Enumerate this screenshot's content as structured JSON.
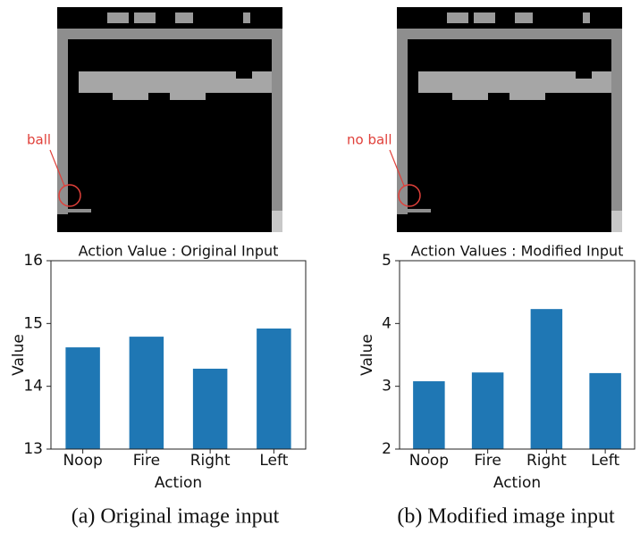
{
  "chart_data": [
    {
      "type": "bar",
      "title": "Action Value : Original Input",
      "x_label": "Action",
      "y_label": "Value",
      "categories": [
        "Noop",
        "Fire",
        "Right",
        "Left"
      ],
      "values": [
        14.62,
        14.79,
        14.28,
        14.92
      ],
      "color": "#1f77b4",
      "ylim": [
        13,
        16
      ],
      "yticks": [
        13,
        14,
        15,
        16
      ]
    },
    {
      "type": "bar",
      "title": "Action Values : Modified Input",
      "x_label": "Action",
      "y_label": "Value",
      "categories": [
        "Noop",
        "Fire",
        "Right",
        "Left"
      ],
      "values": [
        3.08,
        3.22,
        4.23,
        3.21
      ],
      "color": "#1f77b4",
      "ylim": [
        2,
        5
      ],
      "yticks": [
        2,
        3,
        4,
        5
      ]
    }
  ],
  "panels": [
    {
      "annotation": "ball",
      "caption": "(a) Original image input"
    },
    {
      "annotation": "no ball",
      "caption": "(b) Modified image input"
    }
  ]
}
